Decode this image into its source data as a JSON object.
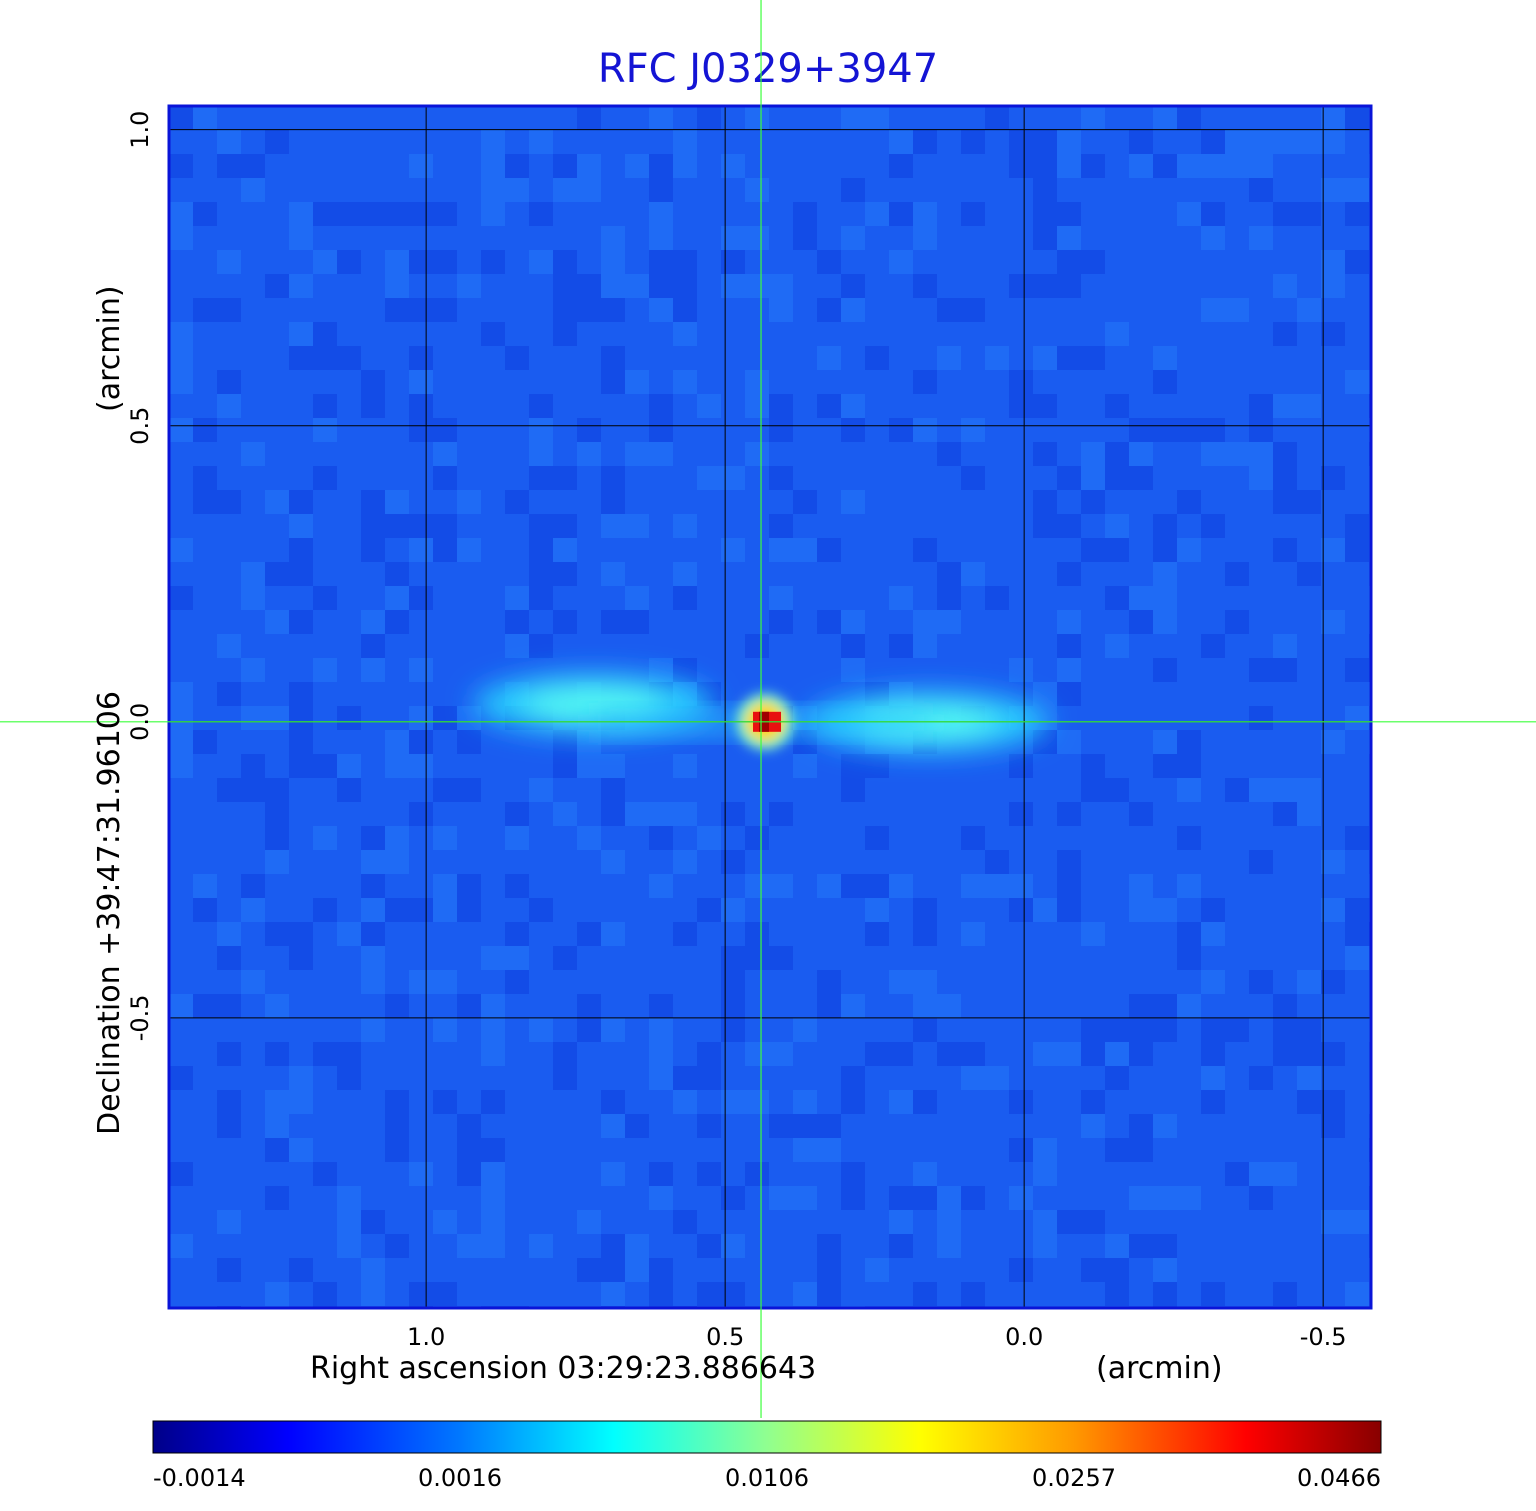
{
  "title": "RFC J0329+3947",
  "chart_data": {
    "type": "heatmap",
    "title": "RFC J0329+3947",
    "xlabel": "Right ascension  03:29:23.886643",
    "xunit": "(arcmin)",
    "ylabel": "Declination  +39:47:31.96106",
    "yunit": "(arcmin)",
    "x_ticks": [
      "1.0",
      "0.5",
      "0.0",
      "-0.5"
    ],
    "y_ticks": [
      "1.0",
      "0.5",
      "0.0",
      "-0.5"
    ],
    "xlim": [
      1.43,
      -0.58
    ],
    "ylim": [
      -0.99,
      1.04
    ],
    "grid": true,
    "crosshair": {
      "x": 0.44,
      "y": 0.0
    },
    "colorbar_ticks": [
      "-0.0014",
      "0.0016",
      "0.0106",
      "0.0257",
      "0.0466"
    ],
    "colorbar_range": [
      -0.0014,
      0.0466
    ],
    "colormap": "jet",
    "peak": {
      "x": 0.43,
      "y": 0.0,
      "value": 0.0466
    },
    "jet_components": [
      {
        "x": 0.72,
        "y": 0.03,
        "value": 0.0075
      },
      {
        "x": 0.16,
        "y": 0.0,
        "value": 0.0075
      }
    ],
    "background_value": 0.0006
  },
  "colors": {
    "title": "#1414d4",
    "frame": "#0a14d8",
    "crosshair": "#3cff3c",
    "grid": "#000000"
  }
}
